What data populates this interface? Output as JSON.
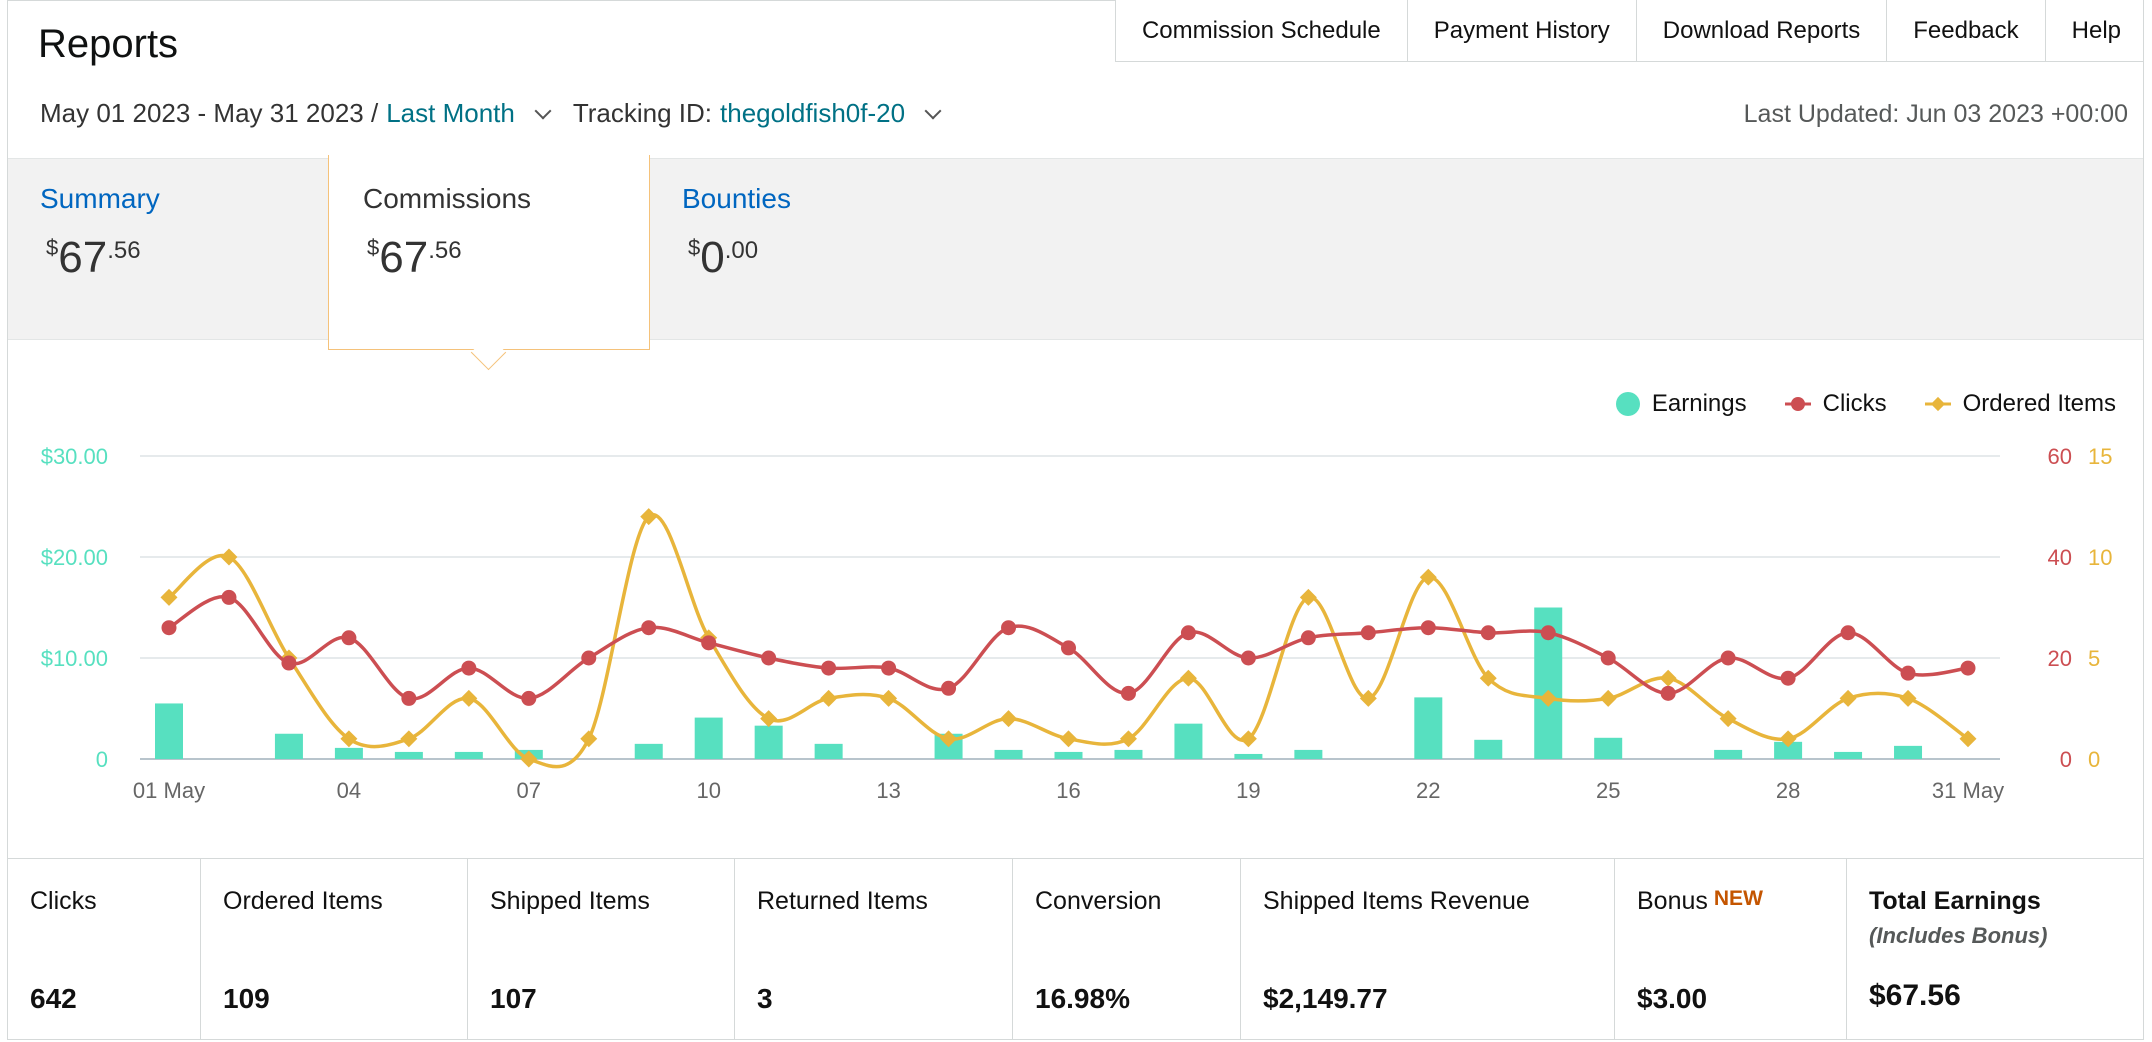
{
  "page": {
    "title": "Reports"
  },
  "nav": [
    "Commission Schedule",
    "Payment History",
    "Download Reports",
    "Feedback",
    "Help"
  ],
  "filters": {
    "date_range": "May 01 2023 - May 31 2023 /",
    "date_preset": "Last Month",
    "tracking_label": "Tracking ID:",
    "tracking_id": "thegoldfish0f-20"
  },
  "last_updated": "Last Updated: Jun 03 2023 +00:00",
  "tabs": [
    {
      "label": "Summary",
      "currency": "$",
      "whole": "67",
      "fraction": ".56"
    },
    {
      "label": "Commissions",
      "currency": "$",
      "whole": "67",
      "fraction": ".56"
    },
    {
      "label": "Bounties",
      "currency": "$",
      "whole": "0",
      "fraction": ".00"
    }
  ],
  "legend": [
    "Earnings",
    "Clicks",
    "Ordered Items"
  ],
  "colors": {
    "earnings": "#57e0c0",
    "clicks": "#cc4e52",
    "ordered": "#e8b53b",
    "link": "#0066c0",
    "teal_link": "#007185",
    "new_badge": "#c45500"
  },
  "chart_data": {
    "type": "bar",
    "x": [
      "01 May",
      "02",
      "03",
      "04",
      "05",
      "06",
      "07",
      "08",
      "09",
      "10",
      "11",
      "12",
      "13",
      "14",
      "15",
      "16",
      "17",
      "18",
      "19",
      "20",
      "21",
      "22",
      "23",
      "24",
      "25",
      "26",
      "27",
      "28",
      "29",
      "30",
      "31 May"
    ],
    "x_tick_labels": [
      "01 May",
      "04",
      "07",
      "10",
      "13",
      "16",
      "19",
      "22",
      "25",
      "28",
      "31 May"
    ],
    "series": [
      {
        "name": "Earnings",
        "type": "bar",
        "axis": "left",
        "values": [
          5.5,
          0,
          2.5,
          1.1,
          0.7,
          0.7,
          0.9,
          0,
          1.5,
          4.1,
          3.3,
          1.5,
          0,
          2.5,
          0.9,
          0.7,
          0.9,
          3.5,
          0.5,
          0.9,
          0,
          6.1,
          1.9,
          15,
          2.1,
          0,
          0.9,
          1.7,
          0.7,
          1.3,
          0
        ]
      },
      {
        "name": "Clicks",
        "type": "line",
        "axis": "right1",
        "values": [
          26,
          32,
          19,
          24,
          12,
          18,
          12,
          20,
          26,
          23,
          20,
          18,
          18,
          14,
          26,
          22,
          13,
          25,
          20,
          24,
          25,
          26,
          25,
          25,
          20,
          13,
          20,
          16,
          25,
          17,
          18
        ]
      },
      {
        "name": "Ordered Items",
        "type": "line",
        "axis": "right2",
        "values": [
          8,
          10,
          5,
          1,
          1,
          3,
          0,
          1,
          12,
          6,
          2,
          3,
          3,
          1,
          2,
          1,
          1,
          4,
          1,
          8,
          3,
          9,
          4,
          3,
          3,
          4,
          2,
          1,
          3,
          3,
          1
        ]
      }
    ],
    "y_left": {
      "ticks": [
        "0",
        "$10.00",
        "$20.00",
        "$30.00"
      ],
      "range": [
        0,
        30
      ]
    },
    "y_right1": {
      "ticks": [
        "0",
        "20",
        "40",
        "60"
      ],
      "range": [
        0,
        60
      ]
    },
    "y_right2": {
      "ticks": [
        "0",
        "5",
        "10",
        "15"
      ],
      "range": [
        0,
        15
      ]
    },
    "grid": true,
    "legend_position": "top-right"
  },
  "stats": [
    {
      "label": "Clicks",
      "value": "642"
    },
    {
      "label": "Ordered Items",
      "value": "109"
    },
    {
      "label": "Shipped Items",
      "value": "107"
    },
    {
      "label": "Returned Items",
      "value": "3"
    },
    {
      "label": "Conversion",
      "value": "16.98%"
    },
    {
      "label": "Shipped Items Revenue",
      "value": "$2,149.77"
    },
    {
      "label": "Bonus",
      "badge": "NEW",
      "value": "$3.00"
    },
    {
      "label": "Total Earnings",
      "sublabel": "(Includes Bonus)",
      "value": "$67.56"
    }
  ]
}
